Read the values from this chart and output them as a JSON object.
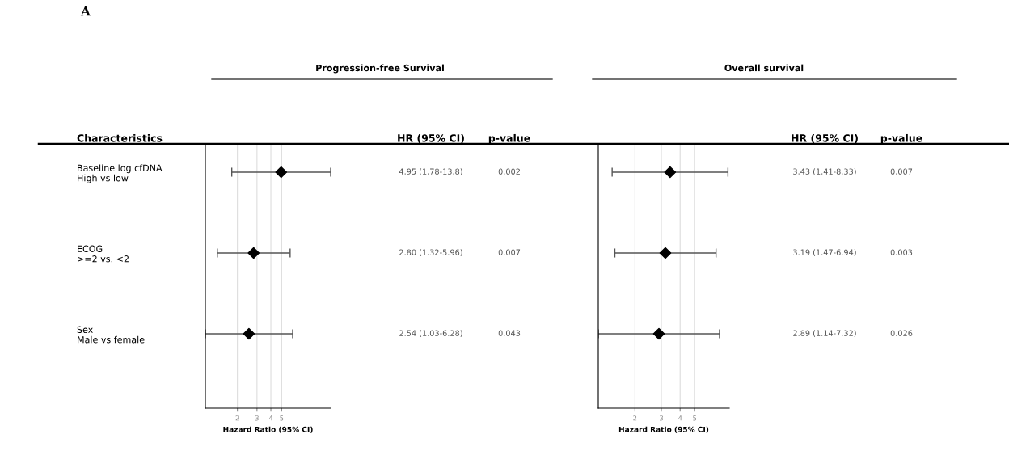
{
  "chart_data": [
    {
      "type": "scatter",
      "orientation": "horizontal",
      "title": "Progression-free Survival",
      "ylabel": "Characteristics",
      "xlabel": "Hazard Ratio (95% CI)",
      "categories": [
        "Baseline log cfDNA\nHigh vs low",
        "ECOG\n>=2 vs. <2",
        "Sex\nMale vs female"
      ],
      "values": [
        4.95,
        2.8,
        2.54
      ],
      "errors": [
        [
          1.78,
          13.8
        ],
        [
          1.32,
          5.96
        ],
        [
          1.03,
          6.28
        ]
      ],
      "value_labels": [
        "4.95 (1.78-13.8)",
        "2.80 (1.32-5.96)",
        "2.54 (1.03-6.28)"
      ],
      "annotations": [
        "A",
        "HR (95% CI)",
        "p-value",
        "0.002",
        "0.007",
        "0.043"
      ],
      "color": "#000000",
      "marker": "diamond",
      "log": "x",
      "xlim": [
        1.03,
        13.8
      ],
      "xticks": [
        2,
        3,
        4,
        5
      ],
      "grid": "x"
    },
    {
      "type": "scatter",
      "orientation": "horizontal",
      "title": "Overall survival",
      "xlabel": "Hazard Ratio (95% CI)",
      "categories": [
        null,
        null,
        null
      ],
      "values": [
        3.43,
        3.19,
        2.89
      ],
      "errors": [
        [
          1.41,
          8.33
        ],
        [
          1.47,
          6.94
        ],
        [
          1.14,
          7.32
        ]
      ],
      "value_labels": [
        "3.43 (1.41-8.33)",
        "3.19 (1.47-6.94)",
        "2.89 (1.14-7.32)"
      ],
      "annotations": [
        "HR (95% CI)",
        "p-value",
        "0.007",
        "0.003",
        "0.026"
      ],
      "color": "#000000",
      "marker": "diamond",
      "log": "x",
      "xlim": [
        1.14,
        8.5
      ],
      "xticks": [
        2,
        3,
        4,
        5
      ],
      "grid": "x",
      "tick_labels": "x"
    }
  ]
}
